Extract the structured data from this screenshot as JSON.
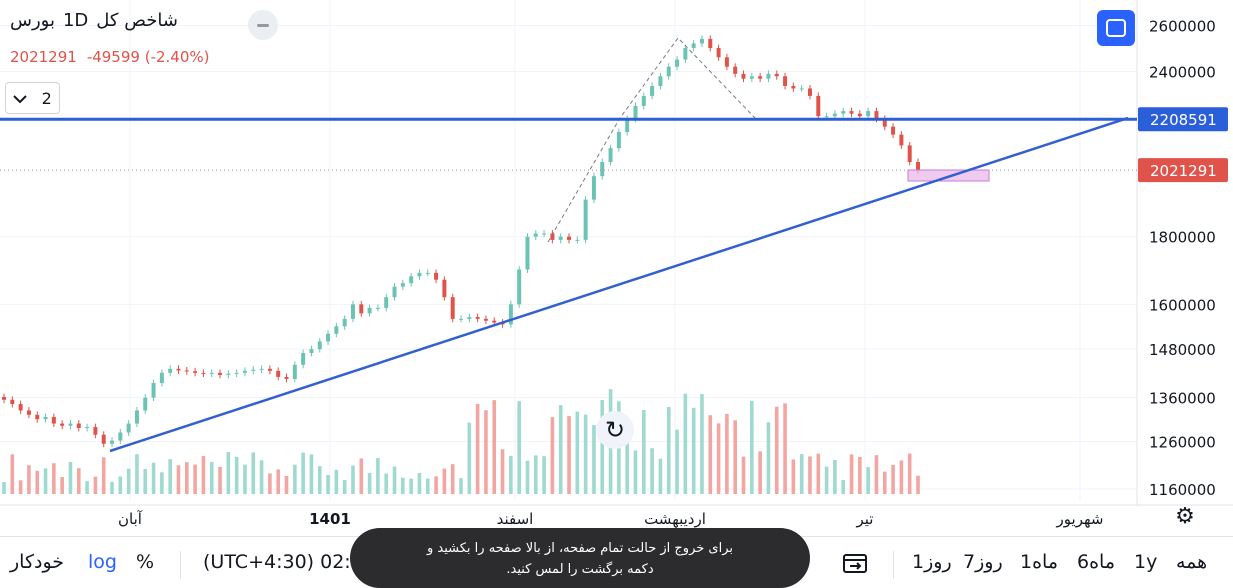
{
  "header": {
    "exchange": "بورس",
    "interval": "1D",
    "symbol_name": "شاخص کل",
    "close_value": "2021291",
    "change": "-49599 (-2.40%)"
  },
  "collapse_control": {
    "count": "2",
    "chevron": "chevron-down-icon"
  },
  "icons": {
    "fullscreen": "fullscreen-icon",
    "replay": "replay-icon",
    "settings": "gear-icon",
    "calendar": "calendar-range-icon",
    "eye": "eye-off-icon"
  },
  "colors": {
    "up": "#6cc3b4",
    "down": "#e0534b",
    "up_volume": "#9fd9cf",
    "down_volume": "#f2a5a1",
    "trendline": "#3360d0",
    "horizontal_line": "#2b5fd9",
    "highlight": "#e9b5ea"
  },
  "price_badges": {
    "horizontal_level": "2208591",
    "last_price": "2021291"
  },
  "chart_data": {
    "type": "candlestick",
    "scale": "log",
    "y_ticks": [
      "2600000",
      "2400000",
      "2208591",
      "2021291",
      "1800000",
      "1600000",
      "1480000",
      "1360000",
      "1260000",
      "1160000"
    ],
    "y_tick_values": [
      2600000,
      2400000,
      1800000,
      1600000,
      1480000,
      1360000,
      1260000,
      1160000
    ],
    "x_labels": [
      "آبان",
      "1401",
      "اسفند",
      "اردیبهشت",
      "تیر",
      "شهریور"
    ],
    "horizontal_level": 2208591,
    "last_close": 2021291,
    "series": [
      {
        "values": [
          1355000,
          1345000,
          1330000,
          1320000,
          1310000,
          1315000,
          1300000,
          1295000,
          1300000,
          1290000,
          1292000,
          1275000,
          1255000,
          1262000,
          1280000,
          1300000,
          1330000,
          1360000,
          1395000,
          1420000,
          1430000,
          1426000,
          1424000,
          1420000,
          1418000,
          1420000,
          1415000,
          1418000,
          1420000,
          1425000,
          1428000,
          1430000,
          1425000,
          1410000,
          1405000,
          1440000,
          1470000,
          1480000,
          1500000,
          1520000,
          1540000,
          1560000,
          1600000,
          1575000,
          1590000,
          1590000,
          1620000,
          1650000,
          1660000,
          1680000,
          1690000,
          1690000,
          1670000,
          1620000,
          1560000,
          1560000,
          1565000,
          1560000,
          1555000,
          1550000,
          1545000,
          1600000,
          1700000,
          1800000,
          1810000,
          1810000,
          1790000,
          1800000,
          1790000,
          1790000,
          1920000,
          2000000,
          2050000,
          2100000,
          2160000,
          2210000,
          2260000,
          2300000,
          2340000,
          2380000,
          2420000,
          2450000,
          2500000,
          2520000,
          2540000,
          2500000,
          2460000,
          2420000,
          2390000,
          2370000,
          2380000,
          2370000,
          2390000,
          2380000,
          2340000,
          2330000,
          2330000,
          2300000,
          2220000,
          2220000,
          2230000,
          2240000,
          2230000,
          2220000,
          2240000,
          2210000,
          2180000,
          2150000,
          2110000,
          2050000,
          2021291
        ]
      }
    ]
  },
  "bottom_bar": {
    "range_all": "همه",
    "range_1y": "1y",
    "range_6m": "6ماه",
    "range_1m": "1ماه",
    "range_7d": "7روز",
    "range_1d": "1روز",
    "timezone": "(UTC+4:30) 02:3",
    "percent": "%",
    "log": "log",
    "auto": "خودکار"
  },
  "toast": {
    "message": "برای خروج از حالت تمام صفحه، از بالا صفحه را بکشید و دکمه برگشت را لمس کنید."
  }
}
